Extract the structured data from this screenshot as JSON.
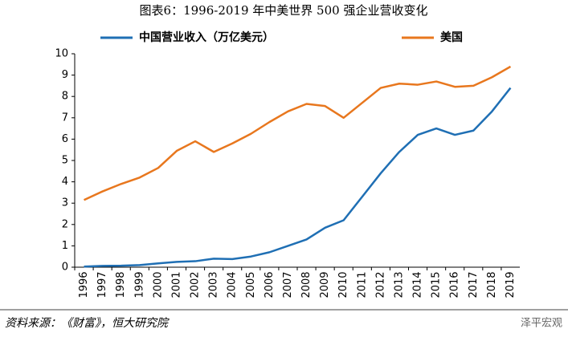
{
  "chart_data": {
    "type": "line",
    "title": "图表6：1996-2019 年中美世界 500 强企业营收变化",
    "categories": [
      "1996",
      "1997",
      "1998",
      "1999",
      "2000",
      "2001",
      "2002",
      "2003",
      "2004",
      "2005",
      "2006",
      "2007",
      "2008",
      "2009",
      "2010",
      "2011",
      "2012",
      "2013",
      "2014",
      "2015",
      "2016",
      "2017",
      "2018",
      "2019"
    ],
    "series": [
      {
        "name": "中国营业收入（万亿美元）",
        "color": "#1f6fb4",
        "values": [
          0.03,
          0.06,
          0.07,
          0.1,
          0.18,
          0.25,
          0.28,
          0.4,
          0.38,
          0.5,
          0.7,
          1.0,
          1.3,
          1.85,
          2.2,
          3.3,
          4.4,
          5.4,
          6.2,
          6.5,
          6.2,
          6.4,
          7.3,
          8.4
        ]
      },
      {
        "name": "美国",
        "color": "#e8771e",
        "values": [
          3.15,
          3.55,
          3.9,
          4.2,
          4.65,
          5.45,
          5.9,
          5.4,
          5.8,
          6.25,
          6.8,
          7.3,
          7.65,
          7.55,
          7.0,
          7.7,
          8.4,
          8.6,
          8.55,
          8.7,
          8.45,
          8.5,
          8.9,
          9.4
        ]
      }
    ],
    "ylim": [
      0,
      10
    ],
    "yticks": [
      0,
      1,
      2,
      3,
      4,
      5,
      6,
      7,
      8,
      9,
      10
    ],
    "grid": false,
    "source": "资料来源：《财富》，恒大研究院",
    "watermark": "泽平宏观"
  }
}
